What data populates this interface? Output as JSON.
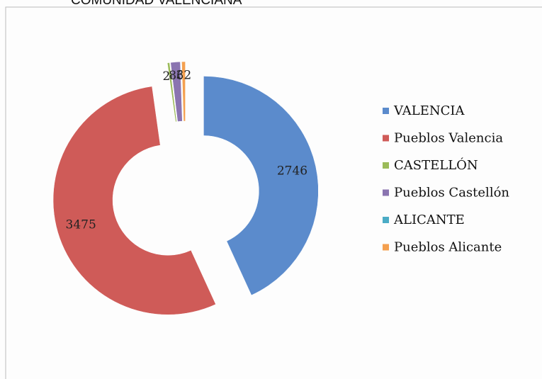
{
  "chart_data": {
    "type": "donut",
    "title": "COMUNIDAD VALENCIANA",
    "categories": [
      "VALENCIA",
      "Pueblos Valencia",
      "CASTELLÓN",
      "Pueblos Castellón",
      "ALICANTE",
      "Pueblos Alicante"
    ],
    "values": [
      2746,
      3475,
      20,
      86,
      3,
      32
    ],
    "colors": [
      "#5b8bcc",
      "#cf5b58",
      "#9bbb59",
      "#8a74b0",
      "#4bacc6",
      "#f4a04f"
    ],
    "legend": "right"
  }
}
